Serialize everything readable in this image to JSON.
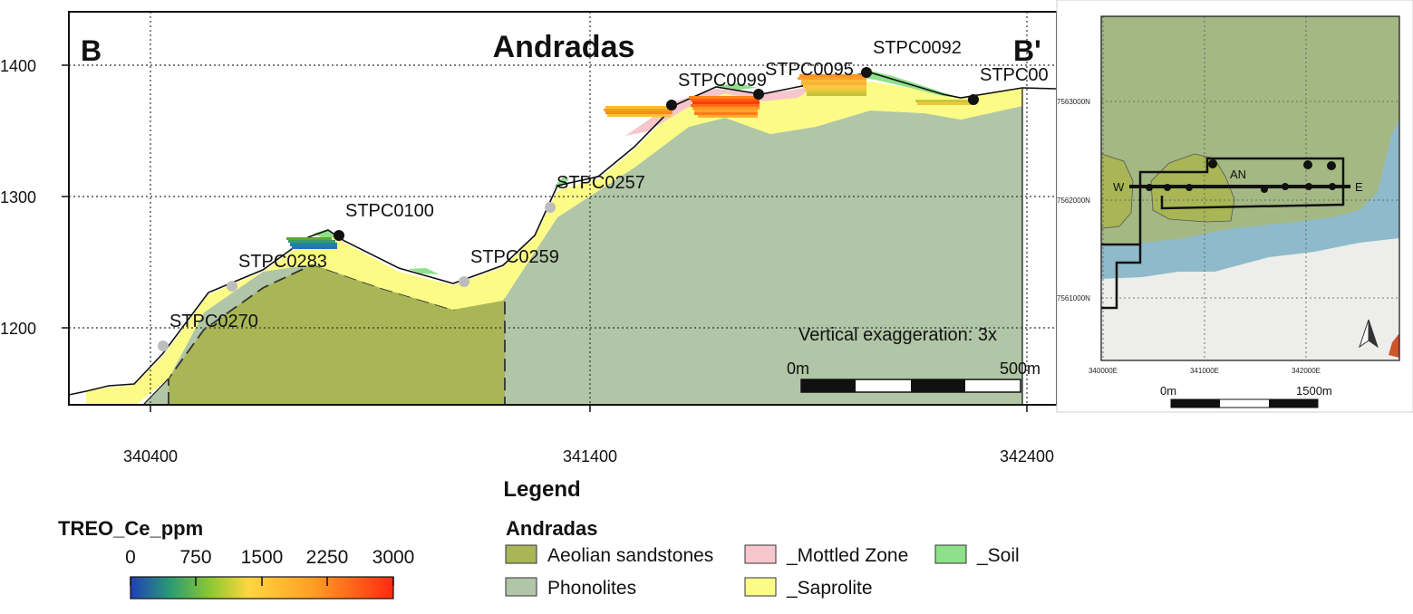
{
  "section": {
    "title": "Andradas",
    "start_label": "B",
    "end_label": "B'",
    "y_ticks": [
      "1200",
      "1300",
      "1400"
    ],
    "x_ticks": [
      "340400",
      "341400",
      "342400"
    ],
    "vertical_exaggeration": "Vertical exaggeration: 3x",
    "scale_start": "0m",
    "scale_end": "500m",
    "drillholes": [
      {
        "id": "STPC0270",
        "status": "grey"
      },
      {
        "id": "STPC0283",
        "status": "grey"
      },
      {
        "id": "STPC0100",
        "status": "black"
      },
      {
        "id": "STPC0259",
        "status": "grey"
      },
      {
        "id": "STPC0257",
        "status": "grey"
      },
      {
        "id": "STPC0099",
        "status": "black"
      },
      {
        "id": "STPC0095",
        "status": "black"
      },
      {
        "id": "STPC0092",
        "status": "black"
      },
      {
        "id": "STPC00",
        "status": "black"
      }
    ]
  },
  "inset": {
    "y_ticks": [
      "7563000N",
      "7562000N",
      "7561000N"
    ],
    "x_ticks": [
      "340000E",
      "341000E",
      "342000E"
    ],
    "west_label": "W",
    "east_label": "E",
    "area_label": "AN",
    "scale_start": "0m",
    "scale_end": "1500m"
  },
  "legend": {
    "title": "Legend",
    "colorbar_title": "TREO_Ce_ppm",
    "colorbar_ticks": [
      "0",
      "750",
      "1500",
      "2250",
      "3000"
    ],
    "group_title": "Andradas",
    "units": [
      {
        "label": "Aeolian sandstones",
        "color": "#a8b656"
      },
      {
        "label": "_Mottled Zone",
        "color": "#f6c6cc"
      },
      {
        "label": "_Soil",
        "color": "#8ee08a"
      },
      {
        "label": "Phonolites",
        "color": "#b0c6a6"
      },
      {
        "label": "_Saprolite",
        "color": "#fbfb86"
      }
    ]
  },
  "colors": {
    "aeolian": "#a8b656",
    "phonolite": "#b0c6a6",
    "saprolite": "#fbfb86",
    "mottled": "#f6c6cc",
    "soil": "#8ee08a",
    "inset_green": "#a4b884",
    "inset_river": "#8fbacb",
    "inset_plain": "#ededeb",
    "inset_olive": "#a8b656"
  }
}
